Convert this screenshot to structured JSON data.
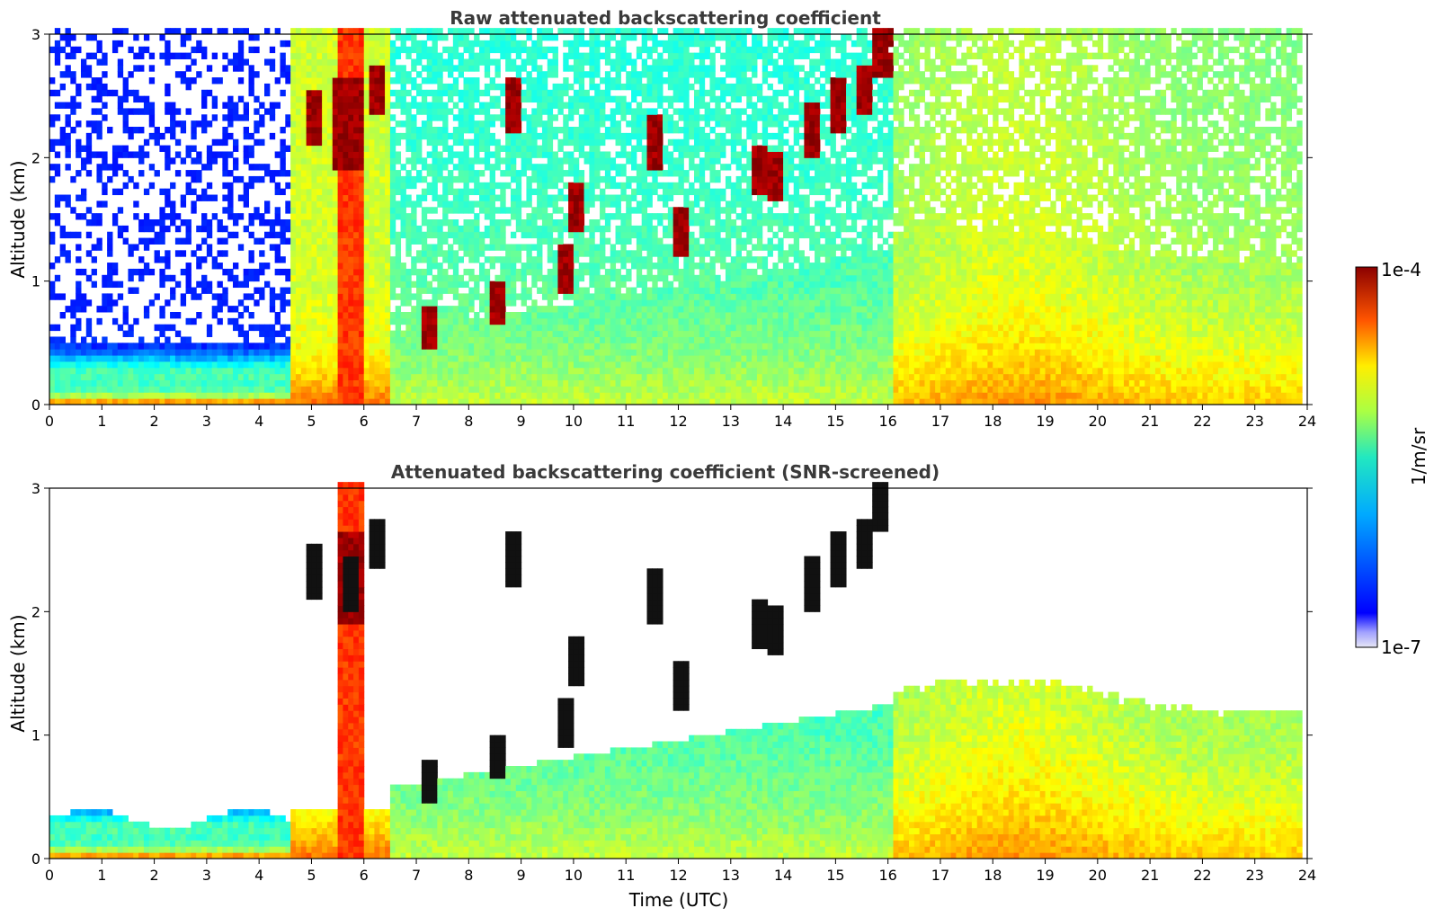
{
  "chart_data": [
    {
      "type": "heatmap",
      "title": "Raw attenuated backscattering coefficient",
      "xlabel": "",
      "ylabel": "Altitude (km)",
      "xlim": [
        0,
        24
      ],
      "ylim": [
        0,
        3
      ],
      "x_ticks": [
        "0",
        "1",
        "2",
        "3",
        "4",
        "5",
        "6",
        "7",
        "8",
        "9",
        "10",
        "11",
        "12",
        "13",
        "14",
        "15",
        "16",
        "17",
        "18",
        "19",
        "20",
        "21",
        "22",
        "23",
        "24"
      ],
      "y_ticks": [
        "0",
        "1",
        "2",
        "3"
      ],
      "screened": false
    },
    {
      "type": "heatmap",
      "title": "Attenuated backscattering coefficient (SNR-screened)",
      "xlabel": "Time (UTC)",
      "ylabel": "Altitude (km)",
      "xlim": [
        0,
        24
      ],
      "ylim": [
        0,
        3
      ],
      "x_ticks": [
        "0",
        "1",
        "2",
        "3",
        "4",
        "5",
        "6",
        "7",
        "8",
        "9",
        "10",
        "11",
        "12",
        "13",
        "14",
        "15",
        "16",
        "17",
        "18",
        "19",
        "20",
        "21",
        "22",
        "23",
        "24"
      ],
      "y_ticks": [
        "0",
        "1",
        "2",
        "3"
      ],
      "screened": true
    }
  ],
  "colorbar": {
    "label": "1/m/sr",
    "max_label": "1e-4",
    "min_label": "1e-7",
    "scale": "log",
    "colormap": "jet"
  }
}
